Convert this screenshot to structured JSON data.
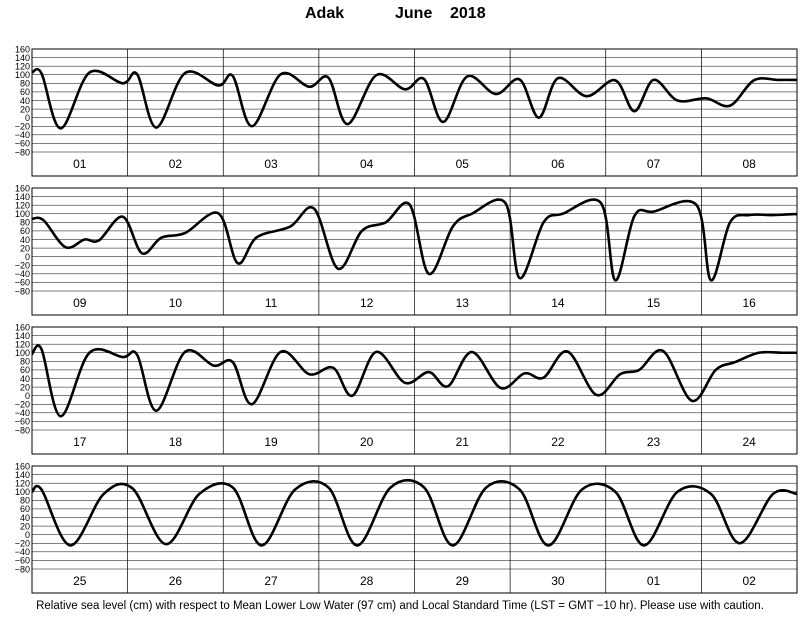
{
  "title": {
    "station": "Adak",
    "month": "June",
    "year": "2018"
  },
  "footer": "Relative sea level (cm) with respect to Mean Lower Low Water (97 cm) and Local Standard Time (LST = GMT −10 hr). Please use with caution.",
  "chart_data": {
    "type": "line",
    "ylim": [
      -80,
      160
    ],
    "yticks": [
      "160",
      "140",
      "120",
      "100",
      "80",
      "60",
      "40",
      "20",
      "0",
      "−20",
      "−40",
      "−60",
      "−80"
    ],
    "grid": true,
    "line_color": "#000000",
    "panels": [
      {
        "days": [
          "01",
          "02",
          "03",
          "04",
          "05",
          "06",
          "07",
          "08"
        ],
        "x": [
          0,
          0.1,
          0.3,
          0.6,
          0.95,
          1.1,
          1.3,
          1.6,
          1.95,
          2.1,
          2.3,
          2.6,
          2.9,
          3.1,
          3.3,
          3.6,
          3.9,
          4.1,
          4.3,
          4.55,
          4.85,
          5.1,
          5.3,
          5.5,
          5.8,
          6.1,
          6.3,
          6.5,
          6.75,
          7.05,
          7.3,
          7.55,
          7.8,
          8
        ],
        "y": [
          105,
          103,
          -25,
          105,
          80,
          101,
          -23,
          104,
          75,
          97,
          -20,
          101,
          72,
          93,
          -15,
          99,
          66,
          90,
          -10,
          96,
          55,
          89,
          0,
          92,
          50,
          87,
          15,
          88,
          40,
          45,
          28,
          87,
          88,
          88
        ]
      },
      {
        "days": [
          "09",
          "10",
          "11",
          "12",
          "13",
          "14",
          "15",
          "16"
        ],
        "x": [
          0,
          0.12,
          0.35,
          0.55,
          0.7,
          0.95,
          1.15,
          1.35,
          1.6,
          1.95,
          2.15,
          2.35,
          2.7,
          2.95,
          3.2,
          3.45,
          3.7,
          3.95,
          4.15,
          4.4,
          4.6,
          4.95,
          5.1,
          5.35,
          5.55,
          5.95,
          6.1,
          6.3,
          6.5,
          6.95,
          7.1,
          7.3,
          7.5,
          7.75,
          7.95,
          8
        ],
        "y": [
          88,
          85,
          22,
          40,
          38,
          93,
          8,
          44,
          55,
          101,
          -15,
          45,
          70,
          112,
          -28,
          60,
          80,
          121,
          -40,
          70,
          100,
          125,
          -50,
          80,
          100,
          125,
          -55,
          95,
          105,
          120,
          -55,
          80,
          97,
          97,
          99,
          99
        ]
      },
      {
        "days": [
          "17",
          "18",
          "19",
          "20",
          "21",
          "22",
          "23",
          "24"
        ],
        "x": [
          0,
          0.1,
          0.3,
          0.6,
          0.95,
          1.1,
          1.3,
          1.6,
          1.9,
          2.1,
          2.3,
          2.6,
          2.9,
          3.15,
          3.35,
          3.6,
          3.9,
          4.15,
          4.35,
          4.6,
          4.9,
          5.15,
          5.35,
          5.6,
          5.9,
          6.15,
          6.35,
          6.6,
          6.9,
          7.15,
          7.35,
          7.6,
          7.85,
          8
        ],
        "y": [
          97,
          108,
          -48,
          100,
          90,
          95,
          -35,
          102,
          70,
          78,
          -20,
          102,
          50,
          65,
          0,
          102,
          30,
          55,
          22,
          102,
          18,
          52,
          42,
          103,
          2,
          50,
          60,
          104,
          -12,
          60,
          78,
          100,
          100,
          100
        ]
      },
      {
        "days": [
          "25",
          "26",
          "27",
          "28",
          "29",
          "30",
          "01",
          "02"
        ],
        "x": [
          0,
          0.1,
          0.4,
          0.75,
          1.05,
          1.4,
          1.75,
          2.1,
          2.4,
          2.75,
          3.1,
          3.4,
          3.75,
          4.1,
          4.4,
          4.75,
          5.1,
          5.4,
          5.75,
          6.1,
          6.4,
          6.75,
          7.1,
          7.4,
          7.75,
          8
        ],
        "y": [
          100,
          105,
          -25,
          95,
          108,
          -22,
          95,
          110,
          -25,
          105,
          110,
          -25,
          110,
          110,
          -25,
          110,
          105,
          -25,
          105,
          100,
          -25,
          100,
          95,
          -20,
          95,
          95
        ]
      }
    ]
  }
}
